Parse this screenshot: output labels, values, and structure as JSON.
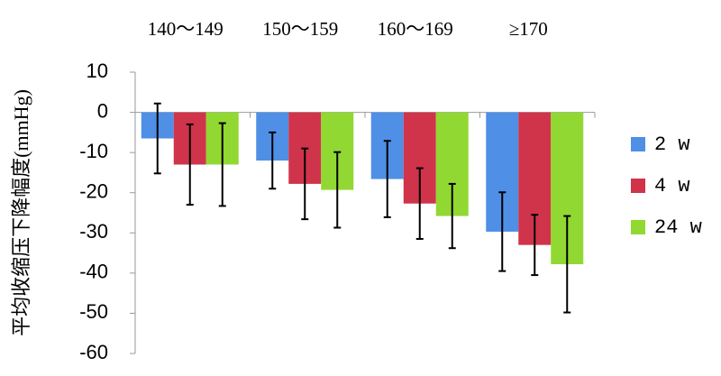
{
  "chart_data": {
    "type": "bar",
    "y_label": "平均收缩压下降幅度(mmHg)",
    "categories": [
      "140～149",
      "150～159",
      "160～169",
      "≥170"
    ],
    "series": [
      {
        "name": "2 w",
        "color": "#4f8fe6",
        "values": [
          -6.5,
          -12,
          -16.6,
          -29.7
        ],
        "errors": [
          8.7,
          7,
          9.5,
          9.8
        ]
      },
      {
        "name": "4 w",
        "color": "#d0344a",
        "values": [
          -13,
          -17.8,
          -22.7,
          -33
        ],
        "errors": [
          10,
          8.8,
          8.8,
          7.5
        ]
      },
      {
        "name": "24 w",
        "color": "#92d832",
        "values": [
          -13,
          -19.3,
          -25.8,
          -37.8
        ],
        "errors": [
          10.3,
          9.4,
          8,
          12
        ]
      }
    ],
    "ylim": [
      -60,
      10
    ],
    "yticks": [
      10,
      0,
      -10,
      -20,
      -30,
      -40,
      -50,
      -60
    ],
    "legend": "right"
  }
}
